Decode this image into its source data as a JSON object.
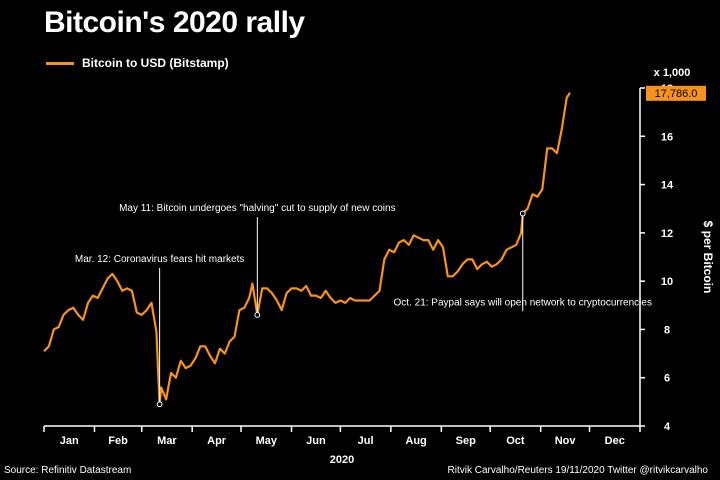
{
  "title": "Bitcoin's 2020 rally",
  "legend_label": "Bitcoin to USD (Bitstamp)",
  "footer_source": "Source: Refinitiv Datastream",
  "footer_credit": "Ritvik Carvalho/Reuters 19/11/2020 Twitter @ritvikcarvalho",
  "colors": {
    "line": "#f7931a",
    "background": "#000000",
    "text": "#ffffff"
  },
  "chart_data": {
    "type": "line",
    "series": [
      {
        "name": "Bitcoin to USD (Bitstamp)",
        "x": [
          "2020-01-01",
          "2020-01-04",
          "2020-01-07",
          "2020-01-10",
          "2020-01-13",
          "2020-01-16",
          "2020-01-19",
          "2020-01-22",
          "2020-01-25",
          "2020-01-28",
          "2020-01-31",
          "2020-02-03",
          "2020-02-06",
          "2020-02-09",
          "2020-02-12",
          "2020-02-15",
          "2020-02-18",
          "2020-02-21",
          "2020-02-24",
          "2020-02-27",
          "2020-03-01",
          "2020-03-04",
          "2020-03-07",
          "2020-03-10",
          "2020-03-12",
          "2020-03-13",
          "2020-03-16",
          "2020-03-19",
          "2020-03-22",
          "2020-03-25",
          "2020-03-28",
          "2020-03-31",
          "2020-04-03",
          "2020-04-06",
          "2020-04-09",
          "2020-04-12",
          "2020-04-15",
          "2020-04-18",
          "2020-04-21",
          "2020-04-24",
          "2020-04-27",
          "2020-04-30",
          "2020-05-03",
          "2020-05-06",
          "2020-05-08",
          "2020-05-11",
          "2020-05-14",
          "2020-05-17",
          "2020-05-20",
          "2020-05-23",
          "2020-05-26",
          "2020-05-29",
          "2020-06-01",
          "2020-06-04",
          "2020-06-07",
          "2020-06-10",
          "2020-06-13",
          "2020-06-16",
          "2020-06-19",
          "2020-06-22",
          "2020-06-25",
          "2020-06-28",
          "2020-07-01",
          "2020-07-04",
          "2020-07-07",
          "2020-07-10",
          "2020-07-13",
          "2020-07-16",
          "2020-07-19",
          "2020-07-22",
          "2020-07-25",
          "2020-07-28",
          "2020-07-31",
          "2020-08-03",
          "2020-08-06",
          "2020-08-09",
          "2020-08-12",
          "2020-08-15",
          "2020-08-18",
          "2020-08-21",
          "2020-08-24",
          "2020-08-27",
          "2020-08-30",
          "2020-09-02",
          "2020-09-05",
          "2020-09-08",
          "2020-09-11",
          "2020-09-14",
          "2020-09-17",
          "2020-09-20",
          "2020-09-23",
          "2020-09-26",
          "2020-09-29",
          "2020-10-02",
          "2020-10-05",
          "2020-10-08",
          "2020-10-11",
          "2020-10-14",
          "2020-10-17",
          "2020-10-20",
          "2020-10-21",
          "2020-10-24",
          "2020-10-27",
          "2020-10-30",
          "2020-11-02",
          "2020-11-05",
          "2020-11-08",
          "2020-11-11",
          "2020-11-14",
          "2020-11-17",
          "2020-11-19"
        ],
        "values": [
          7.1,
          7.3,
          8.0,
          8.1,
          8.6,
          8.8,
          8.9,
          8.6,
          8.4,
          9.1,
          9.4,
          9.3,
          9.7,
          10.1,
          10.3,
          10.0,
          9.6,
          9.7,
          9.6,
          8.7,
          8.6,
          8.8,
          9.1,
          7.9,
          4.9,
          5.6,
          5.1,
          6.2,
          6.0,
          6.7,
          6.4,
          6.5,
          6.8,
          7.3,
          7.3,
          6.9,
          6.6,
          7.2,
          7.0,
          7.5,
          7.7,
          8.8,
          8.9,
          9.3,
          9.9,
          8.6,
          9.7,
          9.7,
          9.5,
          9.2,
          8.8,
          9.5,
          9.7,
          9.7,
          9.6,
          9.8,
          9.4,
          9.4,
          9.3,
          9.6,
          9.3,
          9.1,
          9.2,
          9.1,
          9.3,
          9.2,
          9.2,
          9.2,
          9.2,
          9.4,
          9.6,
          10.9,
          11.3,
          11.2,
          11.6,
          11.7,
          11.5,
          11.9,
          11.8,
          11.7,
          11.7,
          11.3,
          11.7,
          11.4,
          10.2,
          10.2,
          10.4,
          10.7,
          10.9,
          10.9,
          10.5,
          10.7,
          10.8,
          10.6,
          10.7,
          10.9,
          11.3,
          11.4,
          11.5,
          12.0,
          12.8,
          13.0,
          13.6,
          13.5,
          13.8,
          15.5,
          15.5,
          15.3,
          16.3,
          17.6,
          17.8
        ]
      }
    ],
    "xlabel": "2020",
    "ylabel": "$ per Bitcoin",
    "y_unit_note": "x 1,000",
    "xlim": [
      "2020-01-01",
      "2020-12-31"
    ],
    "ylim": [
      4,
      18
    ],
    "y_ticks": [
      4,
      6,
      8,
      10,
      12,
      14,
      16,
      18
    ],
    "x_tick_labels": [
      "Jan",
      "Feb",
      "Mar",
      "Apr",
      "May",
      "Jun",
      "Jul",
      "Aug",
      "Sep",
      "Oct",
      "Nov",
      "Dec"
    ],
    "last_value_label": "17,786.0",
    "y_axis_side": "right",
    "grid": false,
    "legend_position": "top-left",
    "annotations": [
      {
        "text": "Mar. 12: Coronavirus fears hit markets",
        "date": "2020-03-12",
        "value": 4.9,
        "label_value": 10.8,
        "align": "middle"
      },
      {
        "text": "May 11: Bitcoin undergoes \"halving\" cut to supply of new coins",
        "date": "2020-05-11",
        "value": 8.6,
        "label_value": 12.9,
        "align": "middle"
      },
      {
        "text": "Oct. 21: Paypal says will open network to cryptocurrencies",
        "date": "2020-10-21",
        "value": 12.8,
        "label_value": 9.0,
        "align": "middle"
      }
    ]
  }
}
